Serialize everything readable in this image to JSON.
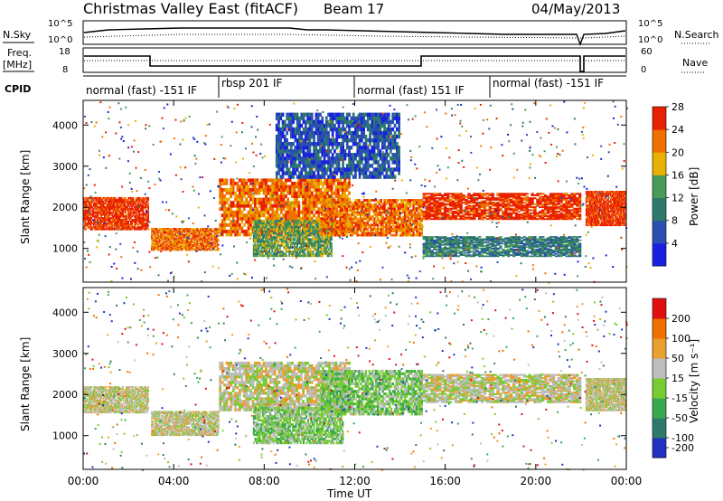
{
  "header": {
    "title": "Christmas Valley East (fitACF)",
    "beam": "Beam 17",
    "date": "04/May/2013"
  },
  "nsky_panel": {
    "left_label": "N.Sky",
    "right_label": "N.Search",
    "ticks": [
      "10^5",
      "10^0"
    ]
  },
  "freq_panel": {
    "left_label_1": "Freq.",
    "left_label_2": "[MHz]",
    "left_ticks": [
      "18",
      "8"
    ],
    "right_ticks": [
      "60",
      "0"
    ],
    "right_label": "Nave"
  },
  "cpid": {
    "label": "CPID",
    "segments": [
      {
        "label": "normal (fast) -151 IF",
        "start": 0,
        "end": 6
      },
      {
        "label": "rbsp 201 IF",
        "start": 6,
        "end": 12
      },
      {
        "label": "normal (fast) 151 IF",
        "start": 12,
        "end": 18
      },
      {
        "label": "normal (fast) -151 IF",
        "start": 18,
        "end": 24
      }
    ]
  },
  "chart_data": [
    {
      "type": "heatmap",
      "name": "power",
      "ylabel": "Slant Range [km]",
      "ylim": [
        180,
        4600
      ],
      "xlim": [
        0,
        24
      ],
      "yticks": [
        1000,
        2000,
        3000,
        4000
      ],
      "colorbar_label": "Power [dB]",
      "colorbar_ticks": [
        "4",
        "8",
        "12",
        "16",
        "20",
        "24",
        "28"
      ],
      "colors": [
        "#1a20e0",
        "#2a50b0",
        "#2e7a6a",
        "#4a9a5a",
        "#e8b000",
        "#f07000",
        "#e82000"
      ],
      "bands": [
        {
          "x": [
            0,
            2.9
          ],
          "y": [
            1450,
            2250
          ],
          "level": 6
        },
        {
          "x": [
            3.0,
            6.0
          ],
          "y": [
            950,
            1500
          ],
          "level": 5
        },
        {
          "x": [
            6.0,
            11.8
          ],
          "y": [
            1300,
            2700
          ],
          "level": 5
        },
        {
          "x": [
            7.5,
            11.0
          ],
          "y": [
            800,
            1700
          ],
          "level": 3
        },
        {
          "x": [
            10.5,
            15.0
          ],
          "y": [
            1300,
            2200
          ],
          "level": 5
        },
        {
          "x": [
            15.0,
            22.0
          ],
          "y": [
            1700,
            2350
          ],
          "level": 6
        },
        {
          "x": [
            22.2,
            24.0
          ],
          "y": [
            1550,
            2400
          ],
          "level": 6
        },
        {
          "x": [
            15.0,
            22.0
          ],
          "y": [
            800,
            1300
          ],
          "level": 2
        },
        {
          "x": [
            8.5,
            14.0
          ],
          "y": [
            2700,
            4300
          ],
          "level": 1
        }
      ]
    },
    {
      "type": "heatmap",
      "name": "velocity",
      "ylabel": "Slant Range [km]",
      "ylim": [
        180,
        4600
      ],
      "xlim": [
        0,
        24
      ],
      "yticks": [
        1000,
        2000,
        3000,
        4000
      ],
      "colorbar_label": "Velocity [m s⁻¹]",
      "colorbar_ticks": [
        "200",
        "100",
        "50",
        "15",
        "-15",
        "-50",
        "-100",
        "-200"
      ],
      "colors": [
        "#2030c0",
        "#2e7a6a",
        "#3aa850",
        "#77cc33",
        "#bdbdbd",
        "#e8a030",
        "#f07000",
        "#e01010"
      ],
      "bands": [
        {
          "x": [
            0,
            2.9
          ],
          "y": [
            1550,
            2200
          ],
          "level": 4
        },
        {
          "x": [
            3.0,
            6.0
          ],
          "y": [
            1000,
            1600
          ],
          "level": 4
        },
        {
          "x": [
            6.0,
            11.8
          ],
          "y": [
            1600,
            2800
          ],
          "level": 4
        },
        {
          "x": [
            7.5,
            11.5
          ],
          "y": [
            800,
            1700
          ],
          "level": 3
        },
        {
          "x": [
            10.5,
            15.0
          ],
          "y": [
            1500,
            2600
          ],
          "level": 3
        },
        {
          "x": [
            15.0,
            22.0
          ],
          "y": [
            1800,
            2500
          ],
          "level": 4
        },
        {
          "x": [
            22.2,
            24.0
          ],
          "y": [
            1600,
            2400
          ],
          "level": 4
        }
      ]
    }
  ],
  "x_axis": {
    "ticks": [
      "00:00",
      "04:00",
      "08:00",
      "12:00",
      "16:00",
      "20:00",
      "00:00"
    ],
    "label": "Time UT"
  }
}
